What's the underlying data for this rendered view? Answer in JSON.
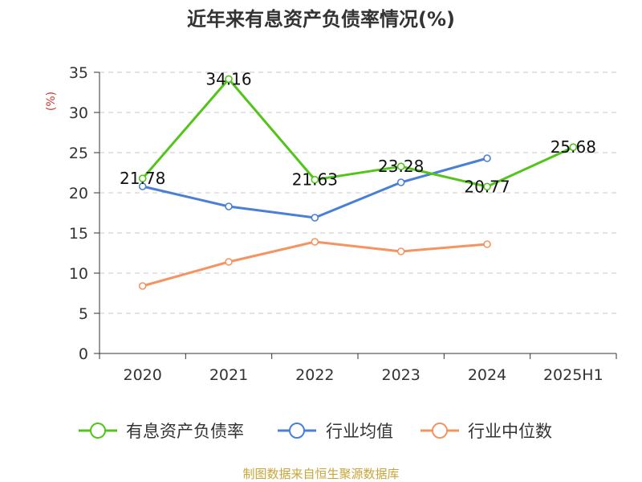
{
  "chart_data": {
    "type": "line",
    "title": "近年来有息资产负债率情况(%)",
    "ylabel": "(%)",
    "categories": [
      "2020",
      "2021",
      "2022",
      "2023",
      "2024",
      "2025H1"
    ],
    "y_ticks": [
      "0",
      "5",
      "10",
      "15",
      "20",
      "25",
      "30",
      "35"
    ],
    "ylim": [
      0,
      35
    ],
    "grid": true,
    "legend_position": "bottom",
    "series": [
      {
        "name": "有息资产负债率",
        "color": "#52c41a",
        "values": [
          21.78,
          34.16,
          21.63,
          23.28,
          20.77,
          25.68
        ],
        "labels": [
          "21.78",
          "34.16",
          "21.63",
          "23.28",
          "20.77",
          "25.68"
        ]
      },
      {
        "name": "行业均值",
        "color": "#4a7fd6",
        "values": [
          20.8,
          18.3,
          16.9,
          21.3,
          24.3,
          null
        ]
      },
      {
        "name": "行业中位数",
        "color": "#f59460",
        "values": [
          8.4,
          11.4,
          13.9,
          12.7,
          13.6,
          null
        ]
      }
    ]
  },
  "source": "制图数据来自恒生聚源数据库"
}
